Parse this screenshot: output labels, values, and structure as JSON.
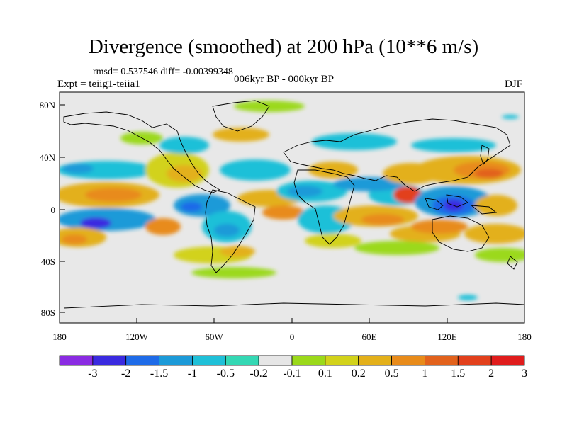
{
  "title": "Divergence (smoothed) at 200 hPa (10**6 m/s)",
  "stats": "rmsd= 0.537546 diff= -0.00399348",
  "expt": "Expt = teiig1-teiia1",
  "period": "006kyr BP - 000kyr BP",
  "season": "DJF",
  "lat_ticks": [
    "80N",
    "40N",
    "0",
    "40S",
    "80S"
  ],
  "lon_ticks": [
    "180",
    "120W",
    "60W",
    "0",
    "60E",
    "120E",
    "180"
  ],
  "colorbar": {
    "colors": [
      "#8a2be2",
      "#3a2ae0",
      "#1e6be8",
      "#1c9ad8",
      "#1fc0d8",
      "#34d8b4",
      "#e6e6e6",
      "#9bd91a",
      "#d2d21a",
      "#e3b01a",
      "#e88b1a",
      "#e2621c",
      "#e2401c",
      "#e01c1c"
    ],
    "labels": [
      "-3",
      "-2",
      "-1.5",
      "-1",
      "-0.5",
      "-0.2",
      "-0.1",
      "0.1",
      "0.2",
      "0.5",
      "1",
      "1.5",
      "2",
      "3"
    ]
  }
}
